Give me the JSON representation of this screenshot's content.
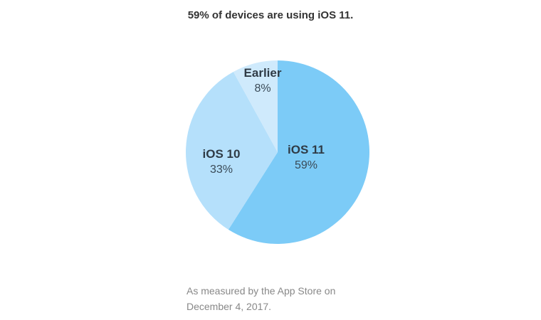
{
  "title": "59% of devices are using iOS 11.",
  "footnote": {
    "line1": "As measured by the App Store on",
    "line2": "December 4, 2017."
  },
  "labels": {
    "ios11": {
      "name": "iOS 11",
      "value": "59%"
    },
    "ios10": {
      "name": "iOS 10",
      "value": "33%"
    },
    "earlier": {
      "name": "Earlier",
      "value": "8%"
    }
  },
  "colors": {
    "ios11": "#7ccbf7",
    "ios10": "#b5e0fb",
    "earlier": "#cfeafc"
  },
  "chart_data": {
    "type": "pie",
    "title": "59% of devices are using iOS 11.",
    "categories": [
      "iOS 11",
      "iOS 10",
      "Earlier"
    ],
    "values": [
      59,
      33,
      8
    ],
    "unit": "%",
    "start_angle": "12 o'clock, clockwise",
    "note": "As measured by the App Store on December 4, 2017."
  }
}
